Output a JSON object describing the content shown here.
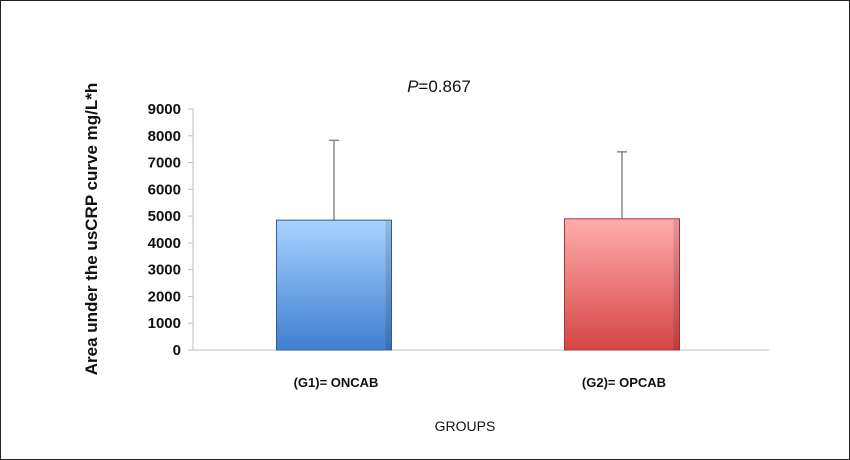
{
  "chart_data": {
    "type": "bar",
    "title_prefix": "P",
    "title_suffix": "=0.867",
    "xlabel": "GROUPS",
    "ylabel": "Area under the usCRP curve mg/L*h",
    "categories": [
      "(G1)= ONCAB",
      "(G2)= OPCAB"
    ],
    "values": [
      4850,
      4900
    ],
    "error_upper": [
      7830,
      7400
    ],
    "ylim": [
      0,
      9000
    ],
    "yticks": [
      "0",
      "1000",
      "2000",
      "3000",
      "4000",
      "5000",
      "6000",
      "7000",
      "8000",
      "9000"
    ],
    "grid": false,
    "legend": "none",
    "colors": {
      "bar1_top": "#a9d2ff",
      "bar1_bottom": "#3f7fd0",
      "bar2_top": "#ffadad",
      "bar2_bottom": "#d64545",
      "axis": "#bdbdbd"
    }
  }
}
